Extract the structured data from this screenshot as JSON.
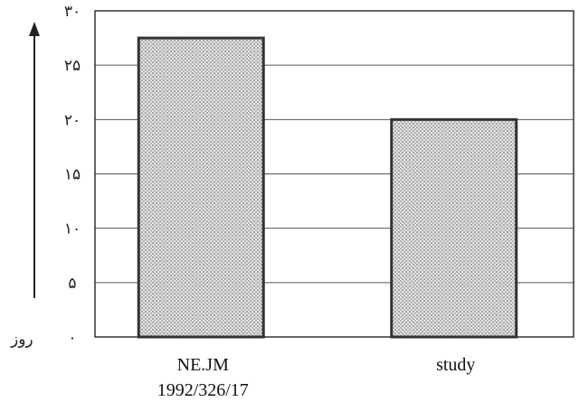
{
  "chart_data": {
    "type": "bar",
    "categories": [
      "NE.JM|1992/326/17",
      "study"
    ],
    "category_lines": [
      [
        "NE.JM",
        "1992/326/17"
      ],
      [
        "study"
      ]
    ],
    "values": [
      27.5,
      20
    ],
    "ylabel": "روز",
    "ylim": [
      0,
      30
    ],
    "yticks": [
      0,
      5,
      10,
      15,
      20,
      25,
      30
    ],
    "ytick_labels": [
      "۰",
      "۵",
      "۱۰",
      "۱۵",
      "۲۰",
      "۲۵",
      "۳۰"
    ],
    "grid": true,
    "colors": {
      "bar_fill": "#c9c9c9",
      "bar_stroke": "#333333",
      "grid": "#555555"
    }
  }
}
